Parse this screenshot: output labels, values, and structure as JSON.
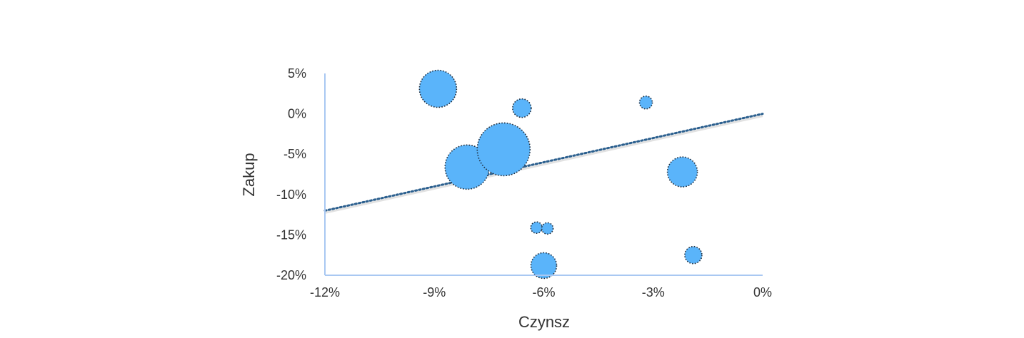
{
  "chart_data": {
    "type": "scatter",
    "variant": "bubble",
    "xlabel": "Czynsz",
    "ylabel": "Zakup",
    "xlim": [
      -12,
      0
    ],
    "ylim": [
      -20,
      5
    ],
    "x_ticks": [
      -12,
      -9,
      -6,
      -3,
      0
    ],
    "x_tick_labels": [
      "-12%",
      "-9%",
      "-6%",
      "-3%",
      "0%"
    ],
    "y_ticks": [
      5,
      0,
      -5,
      -10,
      -15,
      -20
    ],
    "y_tick_labels": [
      "5%",
      "0%",
      "-5%",
      "-10%",
      "-15%",
      "-20%"
    ],
    "grid": false,
    "legend": "none",
    "series": [
      {
        "color": "#5ab4fa",
        "points": [
          {
            "x": -8.9,
            "y": 3.1,
            "size": 26
          },
          {
            "x": -6.6,
            "y": 0.7,
            "size": 13
          },
          {
            "x": -3.2,
            "y": 1.4,
            "size": 9
          },
          {
            "x": -8.1,
            "y": -6.6,
            "size": 31
          },
          {
            "x": -7.1,
            "y": -4.4,
            "size": 37
          },
          {
            "x": -2.2,
            "y": -7.2,
            "size": 21
          },
          {
            "x": -6.2,
            "y": -14.1,
            "size": 8
          },
          {
            "x": -5.9,
            "y": -14.2,
            "size": 8
          },
          {
            "x": -6.0,
            "y": -18.8,
            "size": 18
          },
          {
            "x": -1.9,
            "y": -17.5,
            "size": 12
          }
        ]
      }
    ],
    "trendline": {
      "type": "linear",
      "color": "#2b5f8e",
      "style": "dotted",
      "points": [
        [
          -12,
          -12.0
        ],
        [
          0,
          0.0
        ]
      ]
    }
  }
}
